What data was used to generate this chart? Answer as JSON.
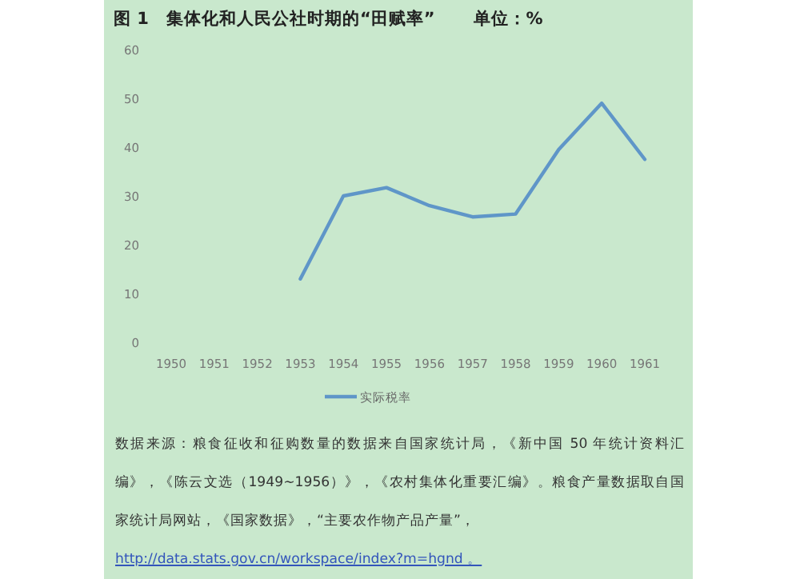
{
  "chart_data": {
    "type": "line",
    "title": "图 1　集体化和人民公社时期的“田赋率”",
    "subtitle": "单位：%",
    "categories": [
      "1950",
      "1951",
      "1952",
      "1953",
      "1954",
      "1955",
      "1956",
      "1957",
      "1958",
      "1959",
      "1960",
      "1961"
    ],
    "series": [
      {
        "name": "实际税率",
        "color": "#5f96c8",
        "values": [
          null,
          null,
          null,
          13,
          30,
          31.7,
          28,
          25.7,
          26.3,
          39.5,
          49,
          37.5
        ]
      }
    ],
    "ylim": [
      0,
      60
    ],
    "yticks": [
      0,
      10,
      20,
      30,
      40,
      50,
      60
    ],
    "grid": false,
    "legend": "bottom",
    "marker": "none",
    "line_style": "solid",
    "annotations": [
      "数据来源：粮食征收和征购数量的数据来自国家统计局，《新中国 50 年统计资料汇编》，《陈云文选（1949~1956）》，《农村集体化重要汇编》。粮食产量数据取自国家统计局网站，《国家数据》，“主要农作物产品产量”，",
      "http://data.stats.gov.cn/workspace/index?m=hgnd 。"
    ]
  }
}
